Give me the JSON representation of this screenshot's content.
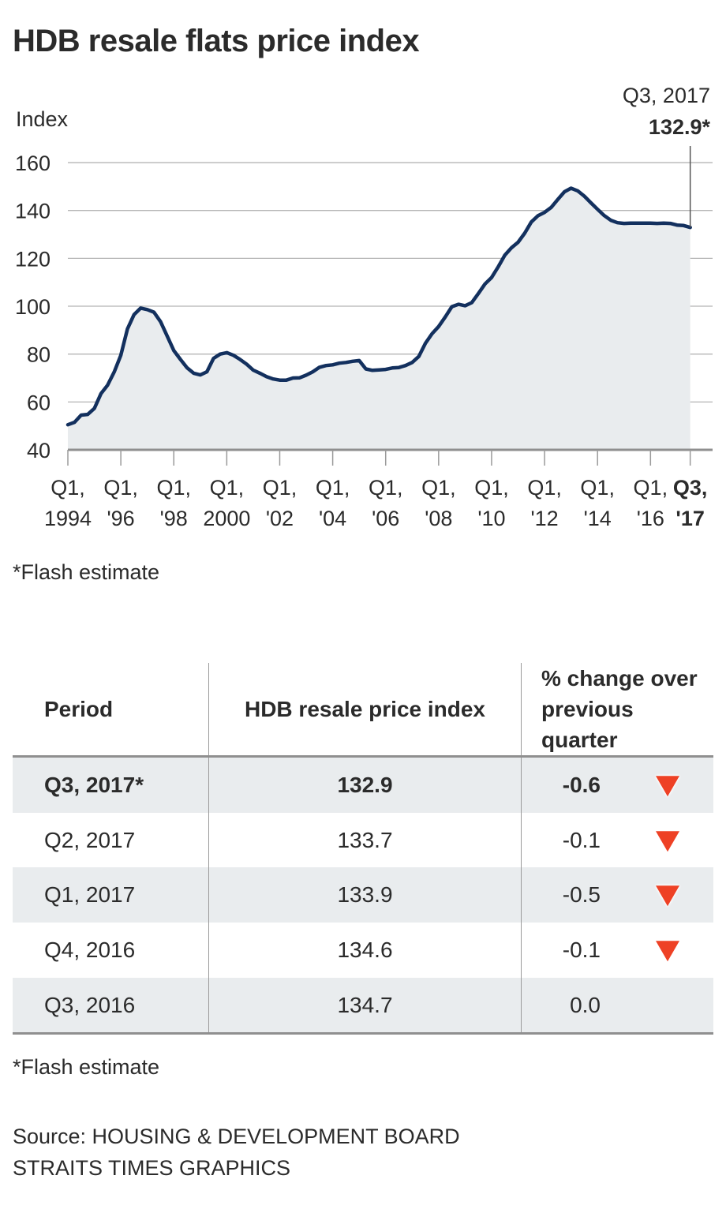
{
  "title": "HDB resale flats price index",
  "chart_data": {
    "type": "area",
    "title": "HDB resale flats price index",
    "ylabel": "Index",
    "xlabel": "",
    "ylim": [
      40,
      160
    ],
    "yticks": [
      40,
      60,
      80,
      100,
      120,
      140,
      160
    ],
    "grid": true,
    "x_start": "Q1 1994",
    "x_end": "Q3 2017",
    "x_frequency": "quarterly",
    "xtick_labels": [
      {
        "q": 0,
        "line1": "Q1,",
        "line2": "1994",
        "bold": false
      },
      {
        "q": 8,
        "line1": "Q1,",
        "line2": "'96",
        "bold": false
      },
      {
        "q": 16,
        "line1": "Q1,",
        "line2": "'98",
        "bold": false
      },
      {
        "q": 24,
        "line1": "Q1,",
        "line2": "2000",
        "bold": false
      },
      {
        "q": 32,
        "line1": "Q1,",
        "line2": "'02",
        "bold": false
      },
      {
        "q": 40,
        "line1": "Q1,",
        "line2": "'04",
        "bold": false
      },
      {
        "q": 48,
        "line1": "Q1,",
        "line2": "'06",
        "bold": false
      },
      {
        "q": 56,
        "line1": "Q1,",
        "line2": "'08",
        "bold": false
      },
      {
        "q": 64,
        "line1": "Q1,",
        "line2": "'10",
        "bold": false
      },
      {
        "q": 72,
        "line1": "Q1,",
        "line2": "'12",
        "bold": false
      },
      {
        "q": 80,
        "line1": "Q1,",
        "line2": "'14",
        "bold": false
      },
      {
        "q": 88,
        "line1": "Q1,",
        "line2": "'16",
        "bold": false
      },
      {
        "q": 94,
        "line1": "Q3,",
        "line2": "'17",
        "bold": true
      }
    ],
    "series": [
      {
        "name": "HDB resale price index",
        "color": "#13305e",
        "fill": "#e9ecee",
        "values": [
          50.5,
          51.5,
          54.5,
          54.8,
          57.3,
          63.5,
          67.0,
          72.5,
          79.5,
          90.5,
          96.5,
          99.2,
          98.6,
          97.5,
          93.5,
          87.5,
          81.5,
          77.8,
          74.3,
          72.0,
          71.3,
          72.6,
          78.2,
          80.0,
          80.6,
          79.5,
          77.8,
          75.8,
          73.3,
          72.0,
          70.6,
          69.6,
          69.1,
          69.1,
          70.0,
          70.1,
          71.2,
          72.6,
          74.5,
          75.2,
          75.5,
          76.2,
          76.5,
          77.0,
          77.3,
          73.8,
          73.2,
          73.4,
          73.6,
          74.2,
          74.4,
          75.2,
          76.5,
          79.0,
          84.5,
          88.5,
          91.5,
          95.5,
          99.8,
          100.8,
          100.2,
          101.5,
          105.3,
          109.3,
          112.0,
          116.5,
          121.3,
          124.4,
          126.7,
          130.5,
          135.2,
          137.8,
          139.2,
          141.3,
          144.6,
          147.8,
          149.3,
          148.2,
          146.0,
          143.2,
          140.5,
          137.9,
          135.9,
          134.9,
          134.6,
          134.7,
          134.7,
          134.7,
          134.7,
          134.6,
          134.7,
          134.6,
          133.9,
          133.7,
          132.9
        ]
      }
    ],
    "annotation": {
      "label": "Q3, 2017",
      "value": "132.9*"
    }
  },
  "chart_footnote": "*Flash estimate",
  "table": {
    "headers": [
      "Period",
      "HDB resale price index",
      "% change over previous quarter"
    ],
    "header3_line1": "% change over",
    "header3_line2": "previous quarter",
    "rows": [
      {
        "period": "Q3, 2017*",
        "index": "132.9",
        "change": "-0.6",
        "down": true,
        "bold": true,
        "shade": true
      },
      {
        "period": "Q2, 2017",
        "index": "133.7",
        "change": "-0.1",
        "down": true,
        "bold": false,
        "shade": false
      },
      {
        "period": "Q1, 2017",
        "index": "133.9",
        "change": "-0.5",
        "down": true,
        "bold": false,
        "shade": true
      },
      {
        "period": "Q4, 2016",
        "index": "134.6",
        "change": "-0.1",
        "down": true,
        "bold": false,
        "shade": false
      },
      {
        "period": "Q3, 2016",
        "index": "134.7",
        "change": "0.0",
        "down": false,
        "bold": false,
        "shade": true
      }
    ],
    "down_color": "#ee4125"
  },
  "table_footnote": "*Flash estimate",
  "source_line1": "Source: HOUSING & DEVELOPMENT BOARD",
  "source_line2": "STRAITS TIMES GRAPHICS"
}
